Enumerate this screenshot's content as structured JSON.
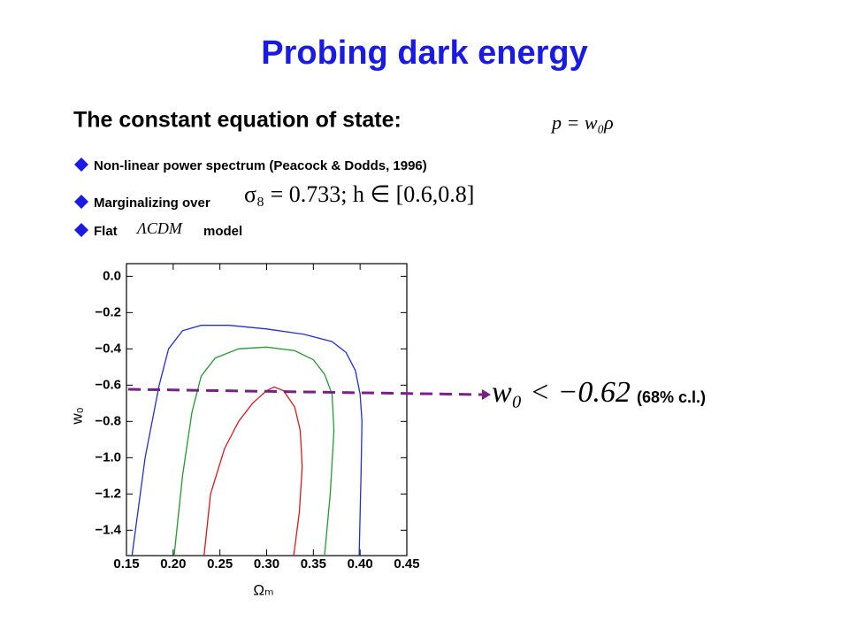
{
  "slide": {
    "title": "Probing dark energy",
    "subtitle": "The constant equation of state:",
    "equation": "p = w₀ρ",
    "bullets": [
      {
        "text": "Non-linear power spectrum (Peacock & Dodds, 1996)"
      },
      {
        "text": "Marginalizing over",
        "math": "σ₈ = 0.733; h ∈ [0.6,0.8]"
      },
      {
        "text": "Flat",
        "math": "ΛCDM",
        "after": "model"
      }
    ],
    "result": "w₀ < −0.62",
    "confidence": "(68% c.l.)"
  },
  "chart_data": {
    "type": "contour",
    "xlabel": "Ωₘ",
    "ylabel": "w₀",
    "xlim": [
      0.15,
      0.45
    ],
    "ylim": [
      -1.54,
      0.07
    ],
    "xticks": [
      0.15,
      {
        "value": 0.2,
        "label": "0.20"
      },
      0.25,
      {
        "value": 0.3,
        "label": "0.30"
      },
      0.35,
      {
        "value": 0.4,
        "label": "0.40"
      },
      0.45
    ],
    "yticks": [
      {
        "value": 0,
        "label": "0.0"
      },
      {
        "value": -0.2,
        "label": "−0.2"
      },
      {
        "value": -0.4,
        "label": "−0.4"
      },
      {
        "value": -0.6,
        "label": "−0.6"
      },
      {
        "value": -0.8,
        "label": "−0.8"
      },
      {
        "value": -1.0,
        "label": "−1.0"
      },
      {
        "value": -1.2,
        "label": "−1.2"
      },
      {
        "value": -1.4,
        "label": "−1.4"
      }
    ],
    "series": [
      {
        "color": "#1f2fd6",
        "x": [
          0.156,
          0.17,
          0.185,
          0.195,
          0.21,
          0.23,
          0.26,
          0.3,
          0.34,
          0.37,
          0.385,
          0.395,
          0.4,
          0.402,
          0.401,
          0.399
        ],
        "y": [
          -1.54,
          -1.0,
          -0.6,
          -0.4,
          -0.3,
          -0.27,
          -0.27,
          -0.29,
          -0.32,
          -0.36,
          -0.42,
          -0.52,
          -0.65,
          -0.8,
          -1.1,
          -1.54
        ]
      },
      {
        "color": "#1e9e2c",
        "x": [
          0.201,
          0.21,
          0.22,
          0.23,
          0.245,
          0.27,
          0.3,
          0.33,
          0.35,
          0.362,
          0.37,
          0.372,
          0.368,
          0.362
        ],
        "y": [
          -1.54,
          -1.1,
          -0.75,
          -0.55,
          -0.45,
          -0.4,
          -0.39,
          -0.41,
          -0.46,
          -0.54,
          -0.65,
          -0.85,
          -1.2,
          -1.54
        ]
      },
      {
        "color": "#e01818",
        "x": [
          0.233,
          0.24,
          0.255,
          0.27,
          0.285,
          0.3,
          0.308,
          0.318,
          0.33,
          0.336,
          0.338,
          0.335,
          0.329
        ],
        "y": [
          -1.54,
          -1.2,
          -0.95,
          -0.8,
          -0.7,
          -0.63,
          -0.61,
          -0.63,
          -0.72,
          -0.85,
          -1.05,
          -1.3,
          -1.54
        ]
      }
    ]
  }
}
